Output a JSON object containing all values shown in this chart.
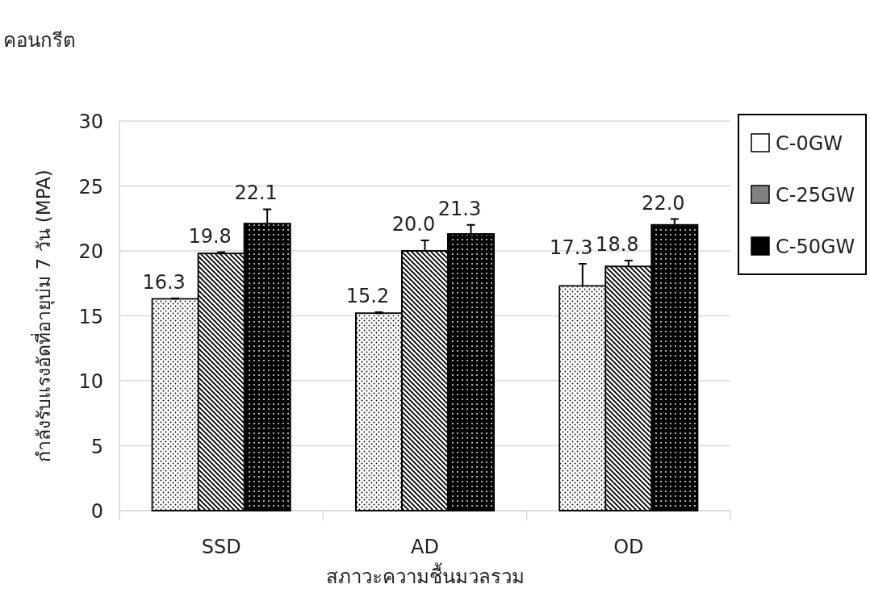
{
  "chart_data": {
    "type": "bar",
    "xlabel": "สภาวะความชื้นมวลรวม",
    "ylabel": "กำลังรับแรงอัดที่อายุบ่ม 7 วัน (MPA)",
    "categories": [
      "SSD",
      "AD",
      "OD"
    ],
    "series": [
      {
        "name": "C-0GW",
        "color": "#ffffff",
        "values": [
          16.3,
          15.2,
          17.3
        ],
        "errors": [
          0.05,
          0.08,
          1.7
        ],
        "value_labels": [
          "16.3",
          "15.2",
          "17.3"
        ]
      },
      {
        "name": "C-25GW",
        "color": "#808080",
        "values": [
          19.8,
          20.0,
          18.8
        ],
        "errors": [
          0.1,
          0.8,
          0.45
        ],
        "value_labels": [
          "19.8",
          "20.0",
          "18.8"
        ]
      },
      {
        "name": "C-50GW",
        "color": "#000000",
        "values": [
          22.1,
          21.3,
          22.0
        ],
        "errors": [
          1.1,
          0.7,
          0.45
        ],
        "value_labels": [
          "22.1",
          "21.3",
          "22.0"
        ]
      }
    ],
    "ylim": [
      0,
      30
    ],
    "yticks": [
      0,
      5,
      10,
      15,
      20,
      25,
      30
    ],
    "grid": "y",
    "legend": "right",
    "annotations": [
      "คอนกรีต"
    ]
  }
}
